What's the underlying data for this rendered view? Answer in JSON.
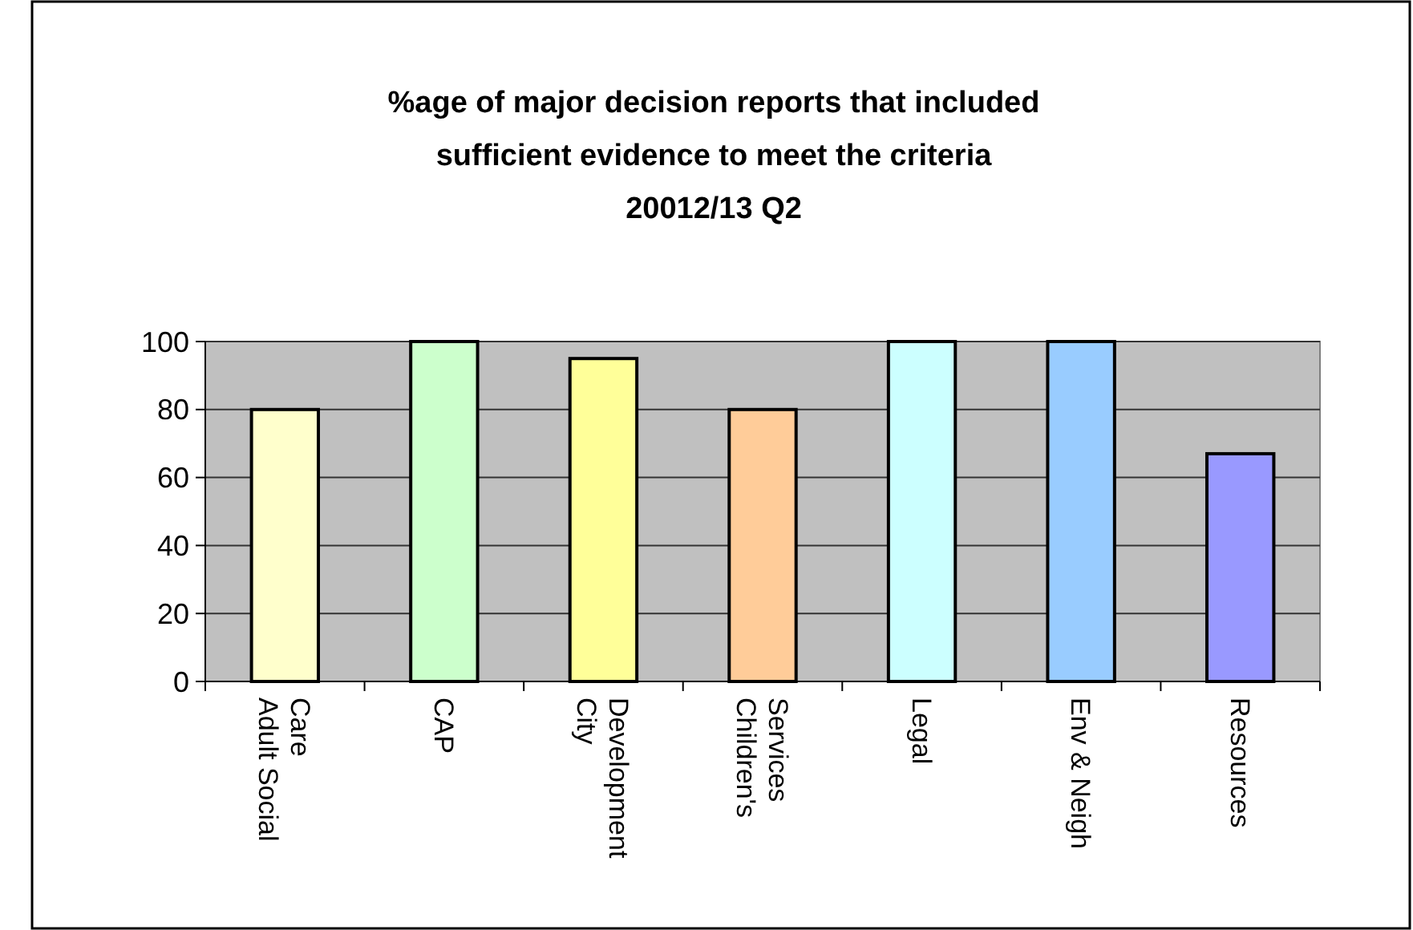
{
  "chart_data": {
    "type": "bar",
    "title": "%age of major decision reports that included\nsufficient evidence to meet the criteria\n20012/13 Q2",
    "categories": [
      "Adult Social Care",
      "CAP",
      "City Development",
      "Children's Services",
      "Legal",
      "Env & Neigh",
      "Resources"
    ],
    "values": [
      80,
      100,
      95,
      80,
      100,
      100,
      67
    ],
    "colors": [
      "#ffffcc",
      "#ccffcc",
      "#ffff99",
      "#ffcc99",
      "#ccffff",
      "#99ccff",
      "#9999ff"
    ],
    "ylim": [
      0,
      100
    ],
    "yticks": [
      0,
      20,
      40,
      60,
      80,
      100
    ],
    "grid": "y"
  }
}
